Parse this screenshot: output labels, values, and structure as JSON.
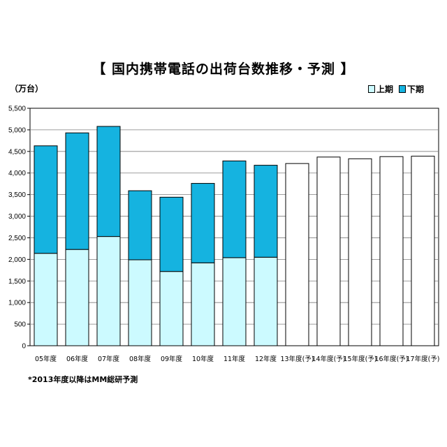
{
  "title": "【 国内携帯電話の出荷台数推移・予測 】",
  "unit_label": "（万台）",
  "footnote": "*2013年度以降はMM総研予測",
  "legend": [
    {
      "name": "上期",
      "color": "#ccfaff"
    },
    {
      "name": "下期",
      "color": "#15b3e0"
    }
  ],
  "chart_data": {
    "type": "bar",
    "stacked": true,
    "title": "【 国内携帯電話の出荷台数推移・予測 】",
    "ylabel": "（万台）",
    "ylim": [
      0,
      5500
    ],
    "yticks": [
      0,
      500,
      1000,
      1500,
      2000,
      2500,
      3000,
      3500,
      4000,
      4500,
      5000,
      5500
    ],
    "ytick_labels": [
      "0",
      "500",
      "1,000",
      "1,500",
      "2,000",
      "2,500",
      "3,000",
      "3,500",
      "4,000",
      "4,500",
      "5,000",
      "5,500"
    ],
    "grid": true,
    "legend_position": "top-right",
    "categories": [
      "05年度",
      "06年度",
      "07年度",
      "08年度",
      "09年度",
      "10年度",
      "11年度",
      "12年度",
      "13年度(予)",
      "14年度(予)",
      "15年度(予)",
      "16年度(予)",
      "17年度(予)"
    ],
    "series": [
      {
        "name": "上期",
        "color": "#ccfaff",
        "values": [
          2140,
          2230,
          2530,
          1990,
          1720,
          1920,
          2040,
          2050,
          null,
          null,
          null,
          null,
          null
        ]
      },
      {
        "name": "下期",
        "color": "#15b3e0",
        "values": [
          2490,
          2700,
          2550,
          1600,
          1720,
          1840,
          2240,
          2130,
          null,
          null,
          null,
          null,
          null
        ]
      }
    ],
    "forecast_totals": [
      null,
      null,
      null,
      null,
      null,
      null,
      null,
      null,
      4220,
      4370,
      4330,
      4380,
      4390
    ],
    "forecast_color": "#ffffff"
  }
}
